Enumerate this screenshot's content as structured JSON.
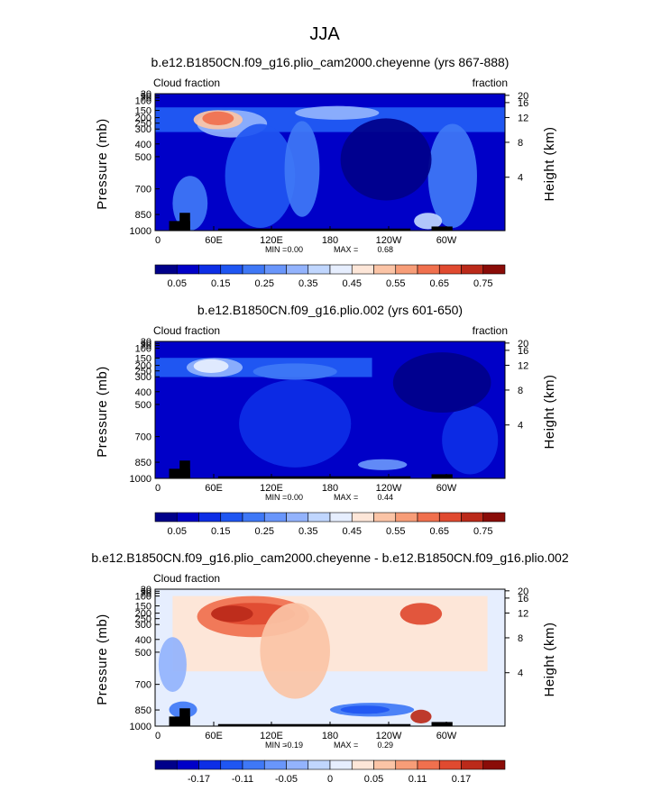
{
  "main_title": "JJA",
  "colors": {
    "palette": [
      "#00008a",
      "#0000c8",
      "#0d2ee6",
      "#1f56f2",
      "#3f78f6",
      "#6996fb",
      "#93b3fd",
      "#c0d6fe",
      "#e6eefe",
      "#fde6d8",
      "#fbc4a6",
      "#f79d78",
      "#f0704e",
      "#e04a30",
      "#bb2a1a",
      "#8a0c08"
    ],
    "land_mask": "#000000"
  },
  "chart_data": [
    {
      "type": "heatmap",
      "title": "b.e12.B1850CN.f09_g16.plio_cam2000.cheyenne (yrs 867-888)",
      "left_label": "Cloud fraction",
      "right_label": "fraction",
      "xlabel": "",
      "ylabel": "Pressure (mb)",
      "y2label": "Height (km)",
      "x_ticks": [
        "0",
        "60E",
        "120E",
        "180",
        "120W",
        "60W"
      ],
      "y_ticks": [
        "30",
        "50",
        "70",
        "100",
        "150",
        "200",
        "250",
        "300",
        "400",
        "500",
        "700",
        "850",
        "1000"
      ],
      "y2_ticks": [
        "20",
        "16",
        "12",
        "8",
        "4"
      ],
      "stats": {
        "min_label": "MIN =",
        "min": "0.00",
        "max_label": "MAX =",
        "max": "0.68"
      },
      "colorbar_ticks": [
        "0.05",
        "0.15",
        "0.25",
        "0.35",
        "0.45",
        "0.55",
        "0.65",
        "0.75"
      ]
    },
    {
      "type": "heatmap",
      "title": "b.e12.B1850CN.f09_g16.plio.002 (yrs 601-650)",
      "left_label": "Cloud fraction",
      "right_label": "fraction",
      "xlabel": "",
      "ylabel": "Pressure (mb)",
      "y2label": "Height (km)",
      "x_ticks": [
        "0",
        "60E",
        "120E",
        "180",
        "120W",
        "60W"
      ],
      "y_ticks": [
        "30",
        "50",
        "70",
        "100",
        "150",
        "200",
        "250",
        "300",
        "400",
        "500",
        "700",
        "850",
        "1000"
      ],
      "y2_ticks": [
        "20",
        "16",
        "12",
        "8",
        "4"
      ],
      "stats": {
        "min_label": "MIN =",
        "min": "0.00",
        "max_label": "MAX =",
        "max": "0.44"
      },
      "colorbar_ticks": [
        "0.05",
        "0.15",
        "0.25",
        "0.35",
        "0.45",
        "0.55",
        "0.65",
        "0.75"
      ]
    },
    {
      "type": "heatmap",
      "title": "b.e12.B1850CN.f09_g16.plio_cam2000.cheyenne - b.e12.B1850CN.f09_g16.plio.002",
      "left_label": "Cloud fraction",
      "right_label": "",
      "xlabel": "",
      "ylabel": "Pressure (mb)",
      "y2label": "Height (km)",
      "x_ticks": [
        "0",
        "60E",
        "120E",
        "180",
        "120W",
        "60W"
      ],
      "y_ticks": [
        "30",
        "50",
        "70",
        "100",
        "150",
        "200",
        "250",
        "300",
        "400",
        "500",
        "700",
        "850",
        "1000"
      ],
      "y2_ticks": [
        "20",
        "16",
        "12",
        "8",
        "4"
      ],
      "stats": {
        "min_label": "MIN =",
        "min": "-0.19",
        "max_label": "MAX =",
        "max": "0.29"
      },
      "colorbar_ticks": [
        "-0.17",
        "-0.11",
        "-0.05",
        "0",
        "0.05",
        "0.11",
        "0.17"
      ]
    }
  ]
}
